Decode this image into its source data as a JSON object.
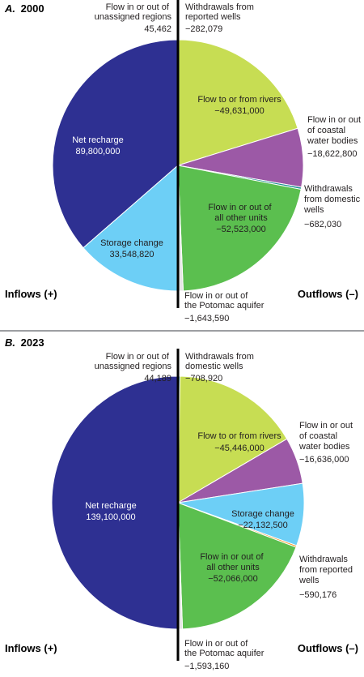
{
  "chart_data": [
    {
      "type": "pie",
      "title": "2000",
      "panel_letter": "A.",
      "inflows_label": "Inflows (+)",
      "outflows_label": "Outflows (–)",
      "slices": [
        {
          "side": "inflow",
          "label": "Net recharge",
          "value": 89800000,
          "display": "89,800,000",
          "color": "#2e3092"
        },
        {
          "side": "inflow",
          "label": "Storage change",
          "value": 33548820,
          "display": "33,548,820",
          "color": "#6dcff6"
        },
        {
          "side": "inflow",
          "label": "Flow in or out of unassigned regions",
          "value": 45462,
          "display": "45,462",
          "color": "#c6cbe6"
        },
        {
          "side": "outflow",
          "label": "Withdrawals from reported wells",
          "value": -282079,
          "display": "−282,079",
          "color": "#f7941d"
        },
        {
          "side": "outflow",
          "label": "Flow to or from rivers",
          "value": -49631000,
          "display": "−49,631,000",
          "color": "#c7dd53"
        },
        {
          "side": "outflow",
          "label": "Flow in or out of coastal water bodies",
          "value": -18622800,
          "display": "−18,622,800",
          "color": "#9c59a6"
        },
        {
          "side": "outflow",
          "label": "Withdrawals from domestic wells",
          "value": -682030,
          "display": "−682,030",
          "color": "#1a8f8f"
        },
        {
          "side": "outflow",
          "label": "Flow in or out of all other units",
          "value": -52523000,
          "display": "−52,523,000",
          "color": "#5bbf4f"
        },
        {
          "side": "outflow",
          "label": "Flow in or out of the Potomac aquifer",
          "value": -1643590,
          "display": "−1,643,590",
          "color": "#e5e5e5"
        }
      ]
    },
    {
      "type": "pie",
      "title": "2023",
      "panel_letter": "B.",
      "inflows_label": "Inflows (+)",
      "outflows_label": "Outflows (–)",
      "slices": [
        {
          "side": "inflow",
          "label": "Net recharge",
          "value": 139100000,
          "display": "139,100,000",
          "color": "#2e3092"
        },
        {
          "side": "inflow",
          "label": "Flow in or out of unassigned regions",
          "value": 44189,
          "display": "44,189",
          "color": "#c6cbe6"
        },
        {
          "side": "outflow",
          "label": "Withdrawals from domestic wells",
          "value": -708920,
          "display": "−708,920",
          "color": "#1a8f8f"
        },
        {
          "side": "outflow",
          "label": "Flow to or from rivers",
          "value": -45446000,
          "display": "−45,446,000",
          "color": "#c7dd53"
        },
        {
          "side": "outflow",
          "label": "Flow in or out of coastal water bodies",
          "value": -16636000,
          "display": "−16,636,000",
          "color": "#9c59a6"
        },
        {
          "side": "outflow",
          "label": "Storage change",
          "value": -22132500,
          "display": "−22,132,500",
          "color": "#6dcff6"
        },
        {
          "side": "outflow",
          "label": "Withdrawals from reported wells",
          "value": -590176,
          "display": "−590,176",
          "color": "#f7941d"
        },
        {
          "side": "outflow",
          "label": "Flow in or out of all other units",
          "value": -52066000,
          "display": "−52,066,000",
          "color": "#5bbf4f"
        },
        {
          "side": "outflow",
          "label": "Flow in or out of the Potomac aquifer",
          "value": -1593160,
          "display": "−1,593,160",
          "color": "#e5e5e5"
        }
      ]
    }
  ]
}
